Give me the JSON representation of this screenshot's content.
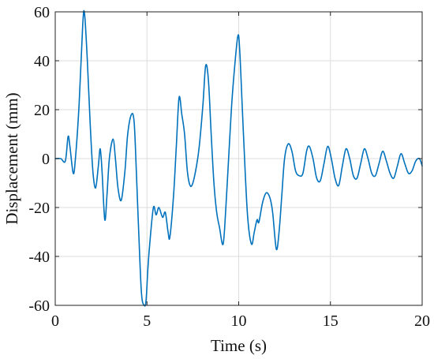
{
  "chart_data": {
    "type": "line",
    "title": "",
    "xlabel": "Time (s)",
    "ylabel": "Displacement (mm)",
    "xlim": [
      0,
      20
    ],
    "ylim": [
      -60,
      60
    ],
    "xticks": [
      0,
      5,
      10,
      15,
      20
    ],
    "yticks": [
      -60,
      -40,
      -20,
      0,
      20,
      40,
      60
    ],
    "grid": true,
    "legend": "none",
    "line_color": "#0072BD",
    "series": [
      {
        "points": [
          [
            0.0,
            0
          ],
          [
            0.3,
            0
          ],
          [
            0.55,
            -1
          ],
          [
            0.7,
            9
          ],
          [
            0.8,
            5
          ],
          [
            0.98,
            -6
          ],
          [
            1.1,
            0
          ],
          [
            1.3,
            22
          ],
          [
            1.5,
            55
          ],
          [
            1.6,
            59
          ],
          [
            1.75,
            40
          ],
          [
            1.9,
            15
          ],
          [
            2.05,
            -5
          ],
          [
            2.2,
            -12
          ],
          [
            2.35,
            -3
          ],
          [
            2.45,
            4
          ],
          [
            2.55,
            -5
          ],
          [
            2.7,
            -25
          ],
          [
            2.82,
            -15
          ],
          [
            2.95,
            0
          ],
          [
            3.15,
            8
          ],
          [
            3.28,
            0
          ],
          [
            3.42,
            -12
          ],
          [
            3.6,
            -17
          ],
          [
            3.8,
            -5
          ],
          [
            3.95,
            10
          ],
          [
            4.15,
            18
          ],
          [
            4.3,
            15
          ],
          [
            4.42,
            -5
          ],
          [
            4.55,
            -30
          ],
          [
            4.7,
            -55
          ],
          [
            4.85,
            -60
          ],
          [
            4.95,
            -58
          ],
          [
            5.05,
            -45
          ],
          [
            5.15,
            -35
          ],
          [
            5.35,
            -20
          ],
          [
            5.5,
            -23
          ],
          [
            5.65,
            -20
          ],
          [
            5.85,
            -24
          ],
          [
            6.0,
            -22
          ],
          [
            6.15,
            -30
          ],
          [
            6.25,
            -32
          ],
          [
            6.45,
            -15
          ],
          [
            6.6,
            5
          ],
          [
            6.75,
            25
          ],
          [
            6.9,
            18
          ],
          [
            7.05,
            10
          ],
          [
            7.2,
            -5
          ],
          [
            7.35,
            -11
          ],
          [
            7.5,
            -10
          ],
          [
            7.7,
            -3
          ],
          [
            7.85,
            5
          ],
          [
            8.05,
            22
          ],
          [
            8.2,
            38
          ],
          [
            8.35,
            32
          ],
          [
            8.5,
            10
          ],
          [
            8.65,
            -10
          ],
          [
            8.8,
            -22
          ],
          [
            8.95,
            -28
          ],
          [
            9.15,
            -35
          ],
          [
            9.3,
            -20
          ],
          [
            9.45,
            0
          ],
          [
            9.6,
            20
          ],
          [
            9.75,
            35
          ],
          [
            9.95,
            50
          ],
          [
            10.05,
            45
          ],
          [
            10.2,
            20
          ],
          [
            10.35,
            -5
          ],
          [
            10.5,
            -25
          ],
          [
            10.7,
            -35
          ],
          [
            10.85,
            -30
          ],
          [
            11.0,
            -25
          ],
          [
            11.1,
            -26
          ],
          [
            11.3,
            -18
          ],
          [
            11.5,
            -14
          ],
          [
            11.7,
            -16
          ],
          [
            11.85,
            -22
          ],
          [
            12.05,
            -37
          ],
          [
            12.2,
            -30
          ],
          [
            12.35,
            -15
          ],
          [
            12.5,
            0
          ],
          [
            12.7,
            6
          ],
          [
            12.9,
            3
          ],
          [
            13.1,
            -5
          ],
          [
            13.3,
            -7
          ],
          [
            13.5,
            -6
          ],
          [
            13.7,
            3
          ],
          [
            13.85,
            5
          ],
          [
            14.05,
            0
          ],
          [
            14.25,
            -8
          ],
          [
            14.45,
            -9
          ],
          [
            14.65,
            -2
          ],
          [
            14.85,
            5
          ],
          [
            15.05,
            0
          ],
          [
            15.25,
            -8
          ],
          [
            15.45,
            -11
          ],
          [
            15.65,
            -3
          ],
          [
            15.85,
            4
          ],
          [
            16.05,
            0
          ],
          [
            16.25,
            -7
          ],
          [
            16.45,
            -8
          ],
          [
            16.65,
            -2
          ],
          [
            16.85,
            4
          ],
          [
            17.05,
            0
          ],
          [
            17.25,
            -6
          ],
          [
            17.45,
            -7
          ],
          [
            17.65,
            -2
          ],
          [
            17.85,
            3
          ],
          [
            18.05,
            -1
          ],
          [
            18.25,
            -6
          ],
          [
            18.45,
            -8
          ],
          [
            18.65,
            -3
          ],
          [
            18.85,
            2
          ],
          [
            19.05,
            -2
          ],
          [
            19.25,
            -6
          ],
          [
            19.45,
            -5
          ],
          [
            19.65,
            -1
          ],
          [
            19.85,
            0
          ],
          [
            20.0,
            -3
          ]
        ]
      }
    ]
  }
}
